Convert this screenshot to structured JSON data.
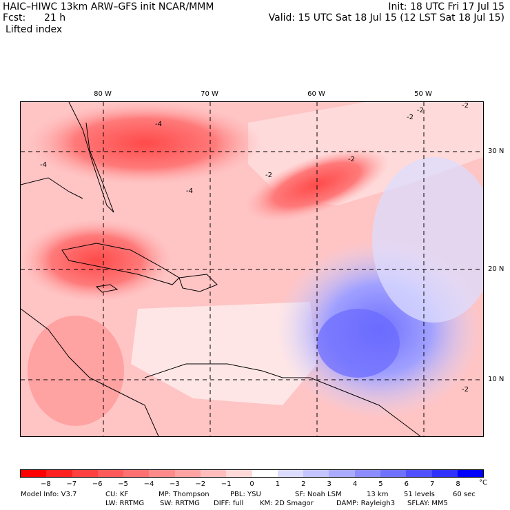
{
  "header": {
    "title_left": "HAIC–HIWC 13km ARW–GFS init   NCAR/MMM",
    "forecast_label": "Fcst:",
    "forecast_hours": "21 h",
    "field_name": "Lifted index",
    "init_text": "Init: 18 UTC Fri 17 Jul 15",
    "valid_text": "Valid: 15 UTC Sat 18 Jul 15 (12 LST Sat 18 Jul 15)"
  },
  "map": {
    "lon_labels": [
      "80 W",
      "70 W",
      "60 W",
      "50 W"
    ],
    "lat_labels": [
      "30 N",
      "20 N",
      "10 N"
    ],
    "contour_labels": [
      "-4",
      "-4",
      "-2",
      "-2",
      "-2",
      "-2",
      "-2",
      "-4",
      "-2"
    ]
  },
  "colorbar": {
    "labels": [
      "−8",
      "−7",
      "−6",
      "−5",
      "−4",
      "−3",
      "−2",
      "−1",
      "0",
      "1",
      "2",
      "3",
      "4",
      "5",
      "6",
      "7",
      "8"
    ],
    "unit": "°C",
    "colors": [
      "#ff0000",
      "#ff2020",
      "#ff4040",
      "#ff5a5a",
      "#ff7070",
      "#ff8a8a",
      "#ffa2a2",
      "#ffbcbc",
      "#ffd8d8",
      "#ffffff",
      "#dcdcff",
      "#c4c4ff",
      "#aaaaff",
      "#8c8cff",
      "#7070ff",
      "#5050ff",
      "#3030ff",
      "#0000ff"
    ]
  },
  "footer": {
    "line1": [
      "Model Info: V3.7",
      "CU: KF",
      "MP: Thompson",
      "PBL: YSU",
      "SF: Noah LSM",
      "13 km",
      "51 levels",
      "60 sec"
    ],
    "line2": [
      "LW: RRTMG",
      "SW: RRTMG",
      "DIFF: full",
      "KM: 2D Smagor",
      "DAMP: Rayleigh3",
      "SFLAY: MM5"
    ]
  }
}
